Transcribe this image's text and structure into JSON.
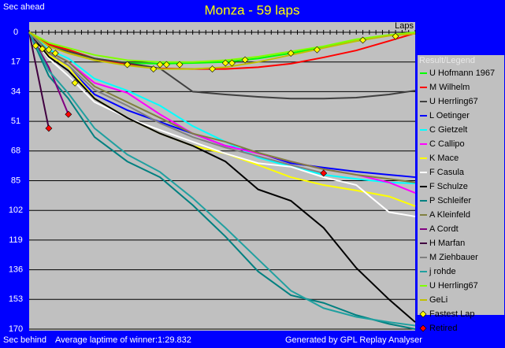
{
  "chart_data": {
    "type": "line",
    "title": "Monza - 59 laps",
    "y_label_top": "Sec ahead",
    "y_label_bottom": "Sec behind",
    "x_label": "Laps",
    "legend_title": "Result/Legend",
    "footer_left": "Average laptime of winner:1:29.832",
    "footer_right": "Generated by GPL Replay Analyser",
    "xlim": [
      0,
      59
    ],
    "ylim": [
      0,
      170
    ],
    "y_inverted": true,
    "yticks": [
      0,
      17,
      34,
      51,
      68,
      85,
      102,
      119,
      136,
      153,
      170
    ],
    "grid": true,
    "x": [
      0,
      3,
      6,
      10,
      15,
      20,
      25,
      30,
      35,
      40,
      45,
      50,
      55,
      59
    ],
    "series": [
      {
        "name": "U Hofmann 1967",
        "color": "#00ff00",
        "values": [
          0,
          7,
          10,
          15,
          17.6,
          18,
          17.6,
          17,
          15,
          12,
          8.6,
          5,
          1.8,
          0.5
        ]
      },
      {
        "name": "M Wilhelm",
        "color": "#ff0000",
        "values": [
          0,
          7,
          10,
          15,
          18.5,
          20.7,
          21,
          21,
          20,
          18,
          14.4,
          10.4,
          5,
          0.5
        ]
      },
      {
        "name": "U Herrling67",
        "color": "#404040",
        "values": [
          0,
          8,
          11,
          15,
          17.6,
          20.7,
          34,
          35.6,
          37,
          38,
          38,
          37.4,
          35.6,
          33.4
        ]
      },
      {
        "name": "L Oetinger",
        "color": "#0000ff",
        "values": [
          0,
          12,
          20,
          35.6,
          44.6,
          51.4,
          58,
          65,
          69,
          75,
          77.5,
          79.8,
          81.6,
          83
        ]
      },
      {
        "name": "C Gietzelt",
        "color": "#00ffff",
        "values": [
          0,
          10,
          15,
          26.6,
          33.4,
          42,
          53.7,
          62.7,
          71.7,
          77,
          81.6,
          84,
          86,
          86.6
        ]
      },
      {
        "name": "C Callipo",
        "color": "#ff00ff",
        "values": [
          0,
          11,
          17,
          29,
          34.7,
          47,
          58,
          65,
          69.4,
          74,
          78.4,
          81.6,
          86,
          92
        ]
      },
      {
        "name": "K Mace",
        "color": "#ffff00",
        "values": [
          0,
          13,
          20,
          37.9,
          49,
          58,
          65,
          69.4,
          76,
          83,
          87.5,
          90.6,
          94,
          99.6
        ]
      },
      {
        "name": "F Casula",
        "color": "#ffffff",
        "values": [
          0,
          15,
          25,
          40,
          49,
          56,
          62.7,
          69.4,
          75,
          77,
          83,
          87.5,
          103,
          105.5
        ]
      },
      {
        "name": "F Schulze",
        "color": "#000000",
        "values": [
          0,
          14,
          22,
          38,
          49,
          58,
          65,
          74,
          90,
          96.5,
          112,
          135,
          153,
          166
        ]
      },
      {
        "name": "P Schleifer",
        "color": "#008080",
        "values": [
          0,
          25,
          38,
          60,
          74,
          83,
          99,
          117,
          137,
          150.6,
          155,
          162,
          167,
          170
        ]
      },
      {
        "name": "A Kleinfeld",
        "color": "#808040",
        "values": [
          0,
          11,
          17,
          31,
          40,
          49,
          58,
          62.7,
          69,
          74,
          78.4,
          81.6,
          84,
          86
        ]
      },
      {
        "name": "A Cordt",
        "color": "#800080",
        "values": [
          0,
          20,
          47,
          null,
          null,
          null,
          null,
          null,
          null,
          null,
          null,
          null,
          null,
          null
        ]
      },
      {
        "name": "H Marfan",
        "color": "#400040",
        "values": [
          0,
          55,
          null,
          null,
          null,
          null,
          null,
          null,
          null,
          null,
          null,
          null,
          null,
          null
        ]
      },
      {
        "name": "M Ziehbauer",
        "color": "#808080",
        "values": [
          0,
          12,
          19,
          33,
          42,
          52,
          60,
          66,
          71,
          76,
          80.7,
          null,
          null,
          null
        ]
      },
      {
        "name": "j rohde",
        "color": "#20a0a0",
        "values": [
          0,
          22,
          35,
          55,
          70,
          80,
          95,
          112,
          130,
          148,
          158,
          163,
          166,
          168
        ]
      },
      {
        "name": "U Herrling67",
        "color": "#80ff00",
        "values": [
          0,
          6,
          9,
          13,
          16,
          17,
          17,
          16,
          14,
          11,
          8,
          4,
          1.5,
          0
        ]
      },
      {
        "name": "GeLi",
        "color": "#c0c000",
        "values": [
          0,
          8,
          12,
          16,
          19,
          21,
          21,
          20,
          17,
          13,
          9,
          5,
          2,
          0.8
        ]
      }
    ],
    "fastest_lap": {
      "name": "Fastest Lap",
      "color": "#ffff00",
      "x": [
        1,
        2,
        3,
        4,
        7,
        15,
        19,
        20,
        21,
        23,
        28,
        30,
        31,
        33,
        40,
        44,
        51,
        56
      ],
      "y": [
        7.7,
        9.5,
        10,
        12,
        29,
        18.5,
        21,
        18.5,
        18.5,
        18.5,
        21,
        17.6,
        17.6,
        15.8,
        12,
        10,
        4.5,
        2.3
      ]
    },
    "retired": {
      "name": "Retired",
      "color": "#ff0000",
      "x": [
        3,
        6,
        45
      ],
      "y": [
        55,
        47,
        80.7
      ]
    }
  }
}
